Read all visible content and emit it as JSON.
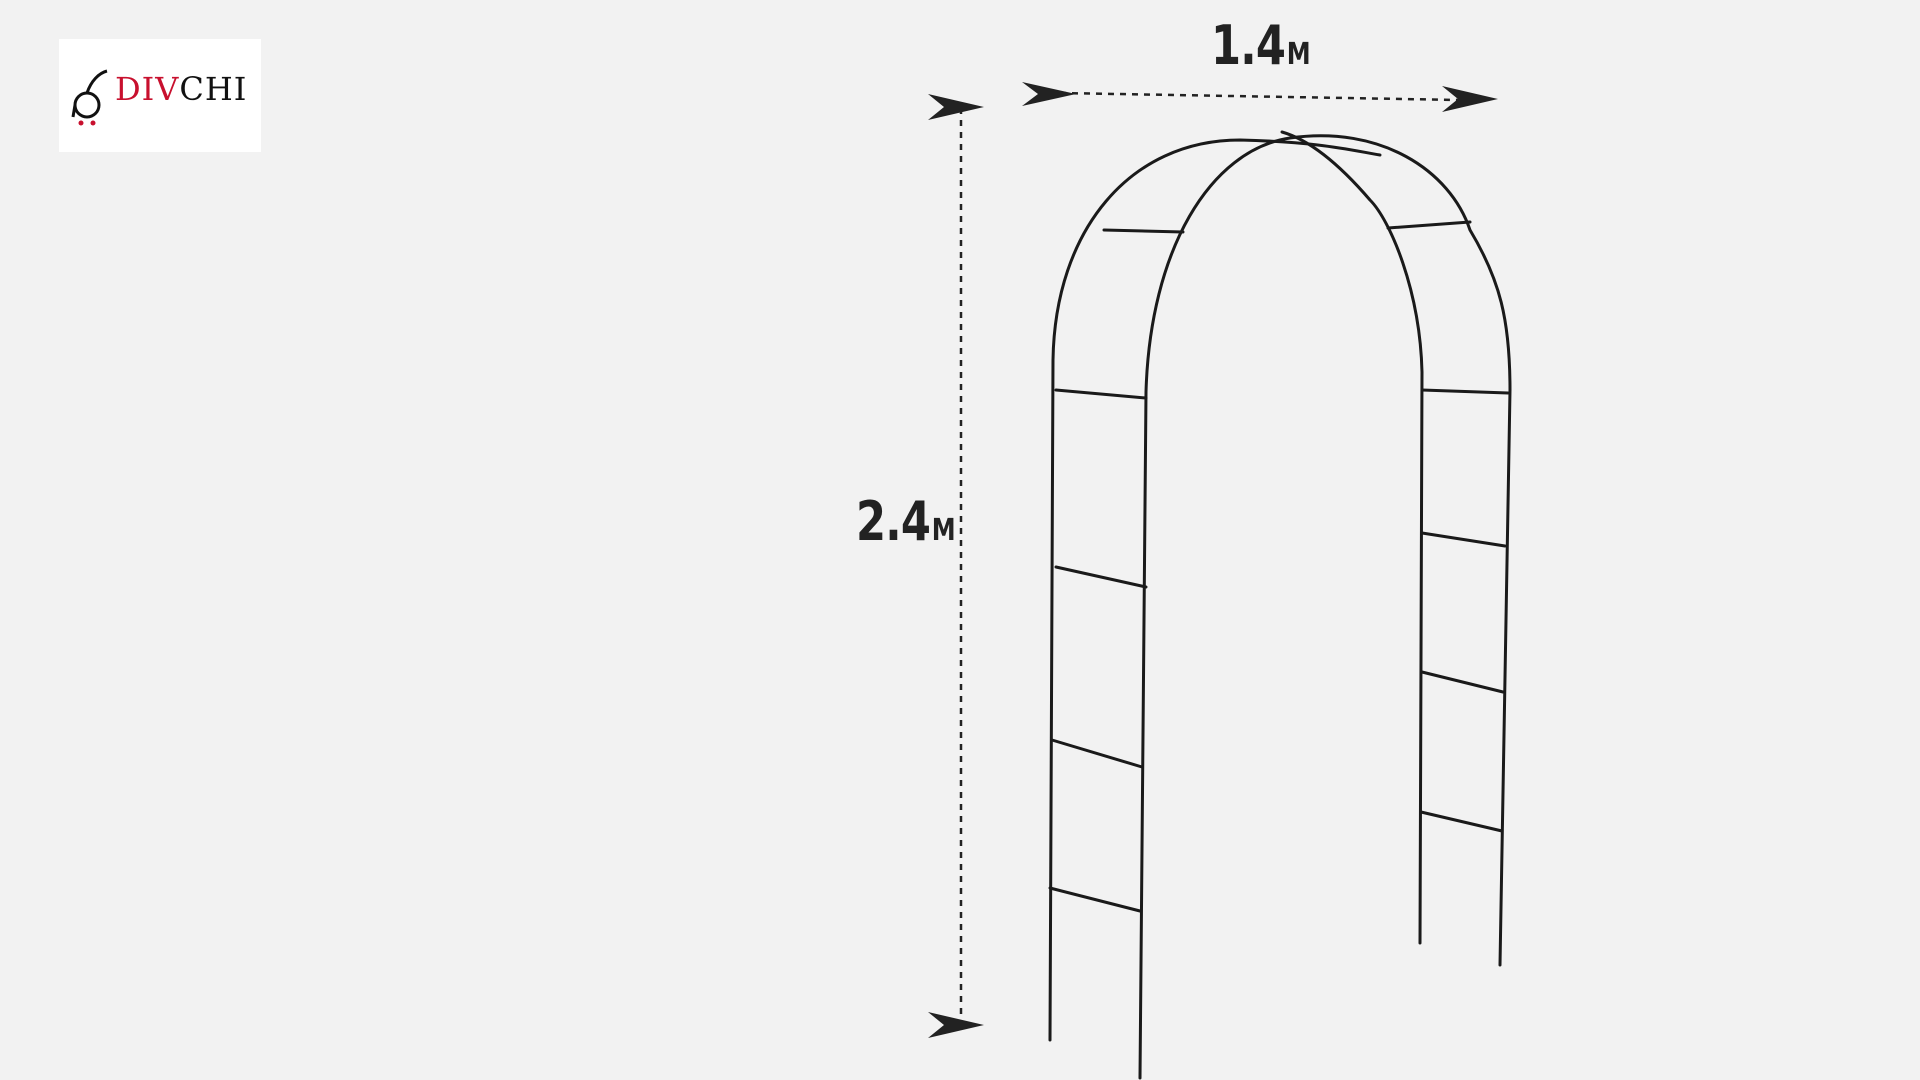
{
  "logo": {
    "text_part1": "DIV",
    "text_part2": "CHI",
    "accent_color": "#c8102e",
    "text_color": "#111111",
    "icon": "cart-icon"
  },
  "dimensions": {
    "width": {
      "value": "1.4",
      "unit": "M"
    },
    "height": {
      "value": "2.4",
      "unit": "M"
    }
  },
  "colors": {
    "background": "#f2f2f2",
    "arch": "#1a1a1a",
    "arrow": "#222222"
  }
}
